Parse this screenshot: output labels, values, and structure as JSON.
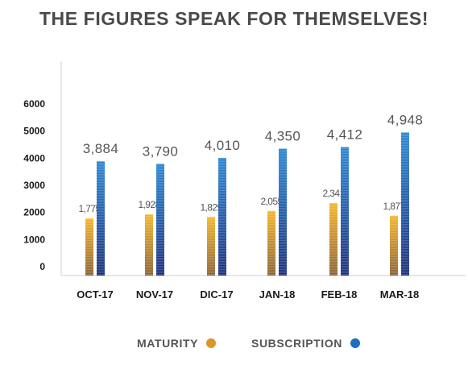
{
  "chart_data": {
    "type": "bar",
    "title": "THE FIGURES SPEAK FOR THEMSELVES!",
    "categories": [
      "OCT-17",
      "NOV-17",
      "DIC-17",
      "JAN-18",
      "FEB-18",
      "MAR-18"
    ],
    "series": [
      {
        "name": "MATURITY",
        "color": "#d9962b",
        "values": [
          1775,
          1928,
          1829,
          2055,
          2341,
          1877
        ],
        "labels": [
          "1,775",
          "1,928",
          "1,829",
          "2,055",
          "2,341",
          "1,877"
        ]
      },
      {
        "name": "SUBSCRIPTION",
        "color": "#1e6fc0",
        "values": [
          3884,
          3790,
          4010,
          4350,
          4412,
          4948
        ],
        "labels": [
          "3,884",
          "3,790",
          "4,010",
          "4,350",
          "4,412",
          "4,948"
        ]
      }
    ],
    "yticks": [
      0,
      1000,
      2000,
      3000,
      4000,
      5000,
      6000
    ],
    "ylim": [
      0,
      6000
    ],
    "grid": false,
    "legend_position": "bottom"
  }
}
